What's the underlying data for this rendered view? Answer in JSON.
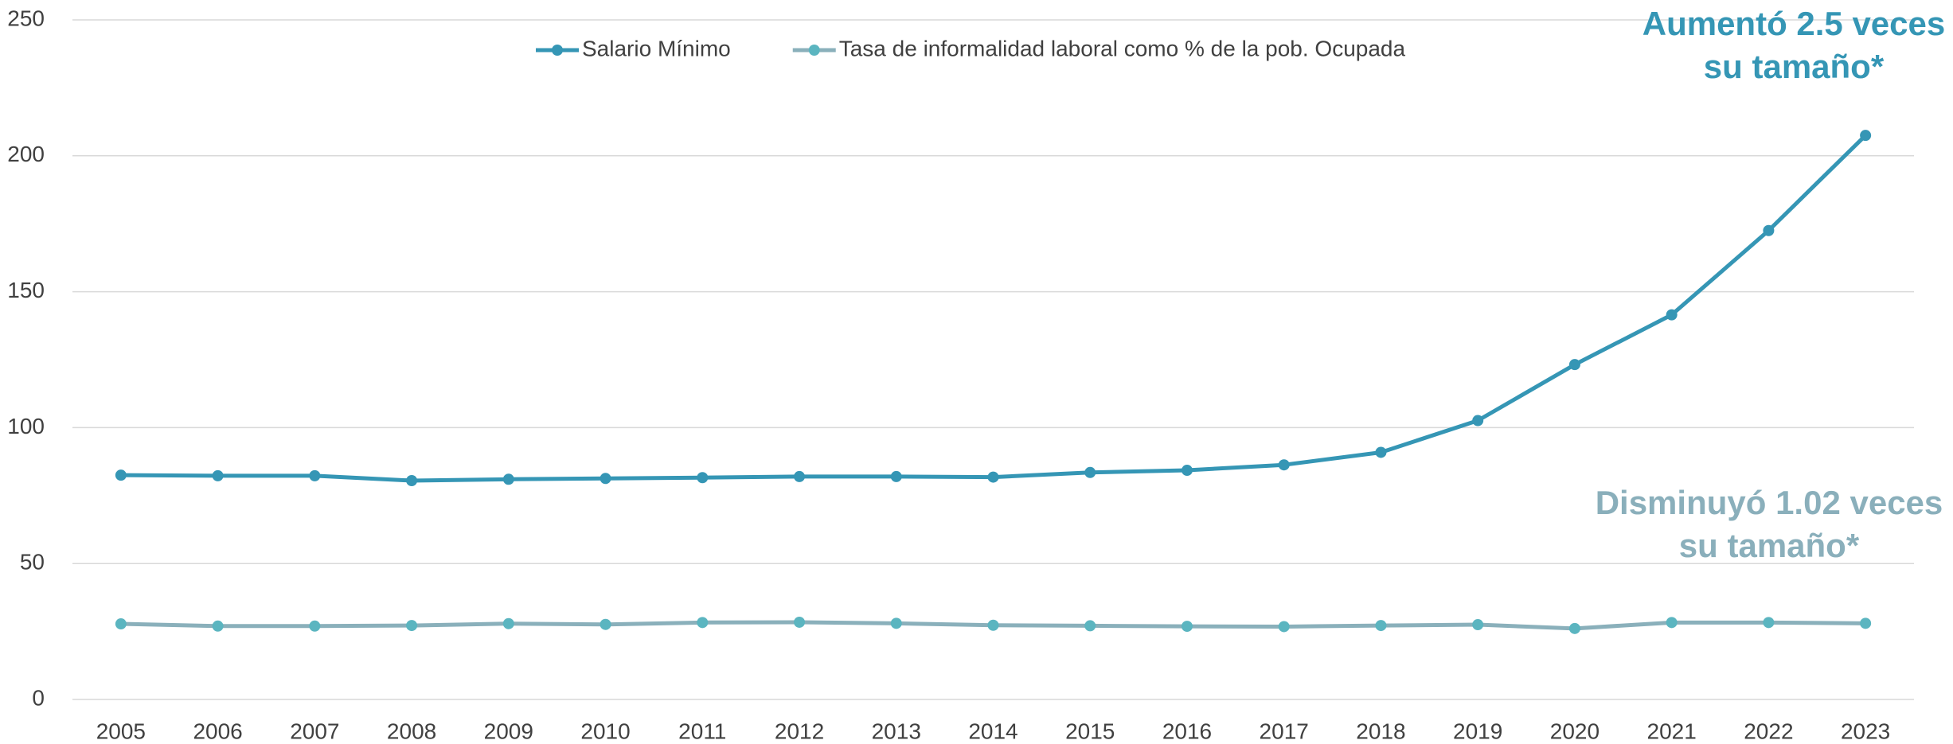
{
  "chart_data": {
    "type": "line",
    "categories": [
      "2005",
      "2006",
      "2007",
      "2008",
      "2009",
      "2010",
      "2011",
      "2012",
      "2013",
      "2014",
      "2015",
      "2016",
      "2017",
      "2018",
      "2019",
      "2020",
      "2021",
      "2022",
      "2023"
    ],
    "series": [
      {
        "name": "Salario Mínimo",
        "color": "#3596b5",
        "marker_color": "#3596b5",
        "values": [
          82.5,
          82.3,
          82.3,
          80.5,
          81,
          81.3,
          81.6,
          82,
          82,
          81.8,
          83.5,
          84.3,
          86.3,
          90.9,
          102.6,
          123.2,
          141.5,
          172.5,
          207.5
        ]
      },
      {
        "name": "Tasa de informalidad laboral como % de la pob. Ocupada",
        "color": "#8ab0bb",
        "marker_color": "#5bb5c0",
        "values": [
          27.8,
          27,
          27,
          27.2,
          27.9,
          27.6,
          28.3,
          28.4,
          28,
          27.3,
          27.1,
          26.9,
          26.8,
          27.2,
          27.5,
          26.1,
          28.3,
          28.3,
          28
        ]
      }
    ],
    "ylim": [
      0,
      250
    ],
    "yticks": [
      0,
      50,
      100,
      150,
      200,
      250
    ],
    "grid": true,
    "legend": "top",
    "annotations": [
      {
        "lines": [
          "Aumentó 2.5 veces",
          "su tamaño*"
        ],
        "color": "#3596b5"
      },
      {
        "lines": [
          "Disminuyó 1.02 veces",
          "su tamaño*"
        ],
        "color": "#8aafbb"
      }
    ]
  }
}
